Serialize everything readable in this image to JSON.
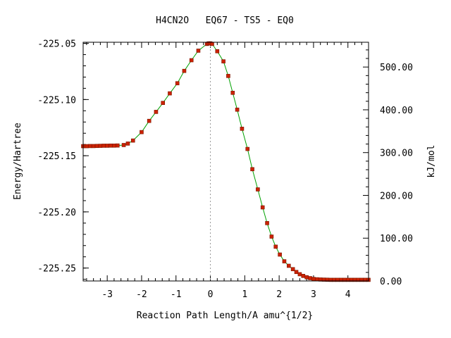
{
  "chart_data": {
    "type": "scatter",
    "title": "H4CN2O   EQ67 - TS5 - EQ0",
    "xlabel": "Reaction Path Length/A amu^{1/2}",
    "ylabel": "Energy/Hartree",
    "y2label": "kJ/mol",
    "xlim": [
      -3.7,
      4.6
    ],
    "ylim": [
      -225.2615,
      -225.049
    ],
    "y2lim": [
      0,
      557.9
    ],
    "x_ticks": [
      -3,
      -2,
      -1,
      0,
      1,
      2,
      3,
      4
    ],
    "x_tick_labels": [
      "-3",
      "-2",
      "-1",
      "0",
      "1",
      "2",
      "3",
      "4"
    ],
    "y_ticks": [
      -225.05,
      -225.1,
      -225.15,
      -225.2,
      -225.25
    ],
    "y_tick_labels": [
      "-225.05",
      "-225.10",
      "-225.15",
      "-225.20",
      "-225.25"
    ],
    "y2_ticks": [
      0,
      100,
      200,
      300,
      400,
      500
    ],
    "y2_tick_labels": [
      "0.00",
      "100.00",
      "200.00",
      "300.00",
      "400.00",
      "500.00"
    ],
    "ts_marker_x": 0,
    "line_color": "#00a000",
    "marker_color": "#cc2200",
    "series": [
      {
        "x": [
          -3.7,
          -3.6,
          -3.5,
          -3.4,
          -3.3,
          -3.2,
          -3.1,
          -3.0,
          -2.9,
          -2.8,
          -2.7,
          -2.52,
          -2.4,
          -2.25,
          -2.0,
          -1.78,
          -1.58,
          -1.38,
          -1.18,
          -0.96,
          -0.76,
          -0.55,
          -0.35,
          -0.1,
          -0.05,
          0.0,
          0.05,
          0.2,
          0.38,
          0.52,
          0.65,
          0.78,
          0.92,
          1.08,
          1.22,
          1.38,
          1.52,
          1.65,
          1.78,
          1.9,
          2.02,
          2.15,
          2.28,
          2.4,
          2.5,
          2.6,
          2.7,
          2.8,
          2.9,
          3.0,
          3.1,
          3.2,
          3.3,
          3.4,
          3.5,
          3.6,
          3.7,
          3.8,
          3.9,
          4.0,
          4.1,
          4.2,
          4.3,
          4.4,
          4.5,
          4.6
        ],
        "y": [
          -225.1415,
          -225.1415,
          -225.1414,
          -225.1414,
          -225.1413,
          -225.1412,
          -225.1411,
          -225.1411,
          -225.141,
          -225.141,
          -225.1409,
          -225.1405,
          -225.1392,
          -225.1365,
          -225.129,
          -225.119,
          -225.111,
          -225.103,
          -225.0945,
          -225.0855,
          -225.0745,
          -225.065,
          -225.0565,
          -225.0505,
          -225.05,
          -225.05,
          -225.0505,
          -225.057,
          -225.066,
          -225.079,
          -225.094,
          -225.109,
          -225.126,
          -225.144,
          -225.162,
          -225.18,
          -225.196,
          -225.21,
          -225.222,
          -225.231,
          -225.238,
          -225.244,
          -225.248,
          -225.251,
          -225.2535,
          -225.2555,
          -225.257,
          -225.2582,
          -225.259,
          -225.2597,
          -225.26,
          -225.2602,
          -225.2603,
          -225.2604,
          -225.2605,
          -225.2605,
          -225.2605,
          -225.2605,
          -225.2605,
          -225.2605,
          -225.2605,
          -225.2605,
          -225.2605,
          -225.2605,
          -225.2605,
          -225.2605
        ]
      }
    ]
  }
}
